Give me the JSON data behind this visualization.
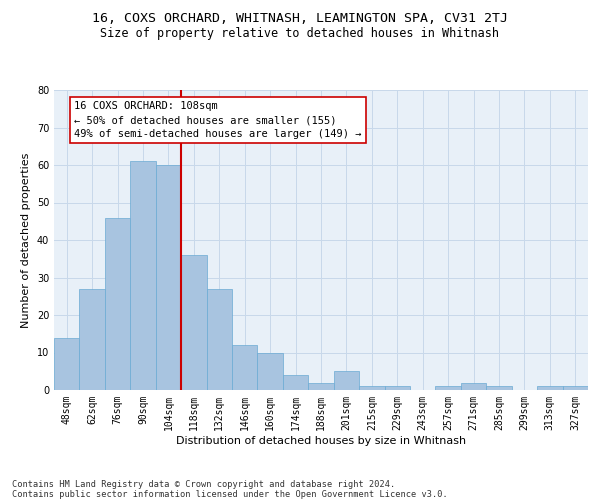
{
  "title": "16, COXS ORCHARD, WHITNASH, LEAMINGTON SPA, CV31 2TJ",
  "subtitle": "Size of property relative to detached houses in Whitnash",
  "xlabel": "Distribution of detached houses by size in Whitnash",
  "ylabel": "Number of detached properties",
  "categories": [
    "48sqm",
    "62sqm",
    "76sqm",
    "90sqm",
    "104sqm",
    "118sqm",
    "132sqm",
    "146sqm",
    "160sqm",
    "174sqm",
    "188sqm",
    "201sqm",
    "215sqm",
    "229sqm",
    "243sqm",
    "257sqm",
    "271sqm",
    "285sqm",
    "299sqm",
    "313sqm",
    "327sqm"
  ],
  "values": [
    14,
    27,
    46,
    61,
    60,
    36,
    27,
    12,
    10,
    4,
    2,
    5,
    1,
    1,
    0,
    1,
    2,
    1,
    0,
    1,
    1
  ],
  "bar_color": "#a8c4e0",
  "bar_edge_color": "#6aaad4",
  "vline_x": 4.5,
  "vline_color": "#cc0000",
  "annotation_text": "16 COXS ORCHARD: 108sqm\n← 50% of detached houses are smaller (155)\n49% of semi-detached houses are larger (149) →",
  "annotation_box_color": "#ffffff",
  "annotation_box_edge_color": "#cc0000",
  "ylim": [
    0,
    80
  ],
  "yticks": [
    0,
    10,
    20,
    30,
    40,
    50,
    60,
    70,
    80
  ],
  "grid_color": "#c8d8ea",
  "background_color": "#e8f0f8",
  "footer_line1": "Contains HM Land Registry data © Crown copyright and database right 2024.",
  "footer_line2": "Contains public sector information licensed under the Open Government Licence v3.0.",
  "title_fontsize": 9.5,
  "subtitle_fontsize": 8.5,
  "xlabel_fontsize": 8,
  "ylabel_fontsize": 8,
  "tick_fontsize": 7,
  "annotation_fontsize": 7.5,
  "footer_fontsize": 6.2
}
